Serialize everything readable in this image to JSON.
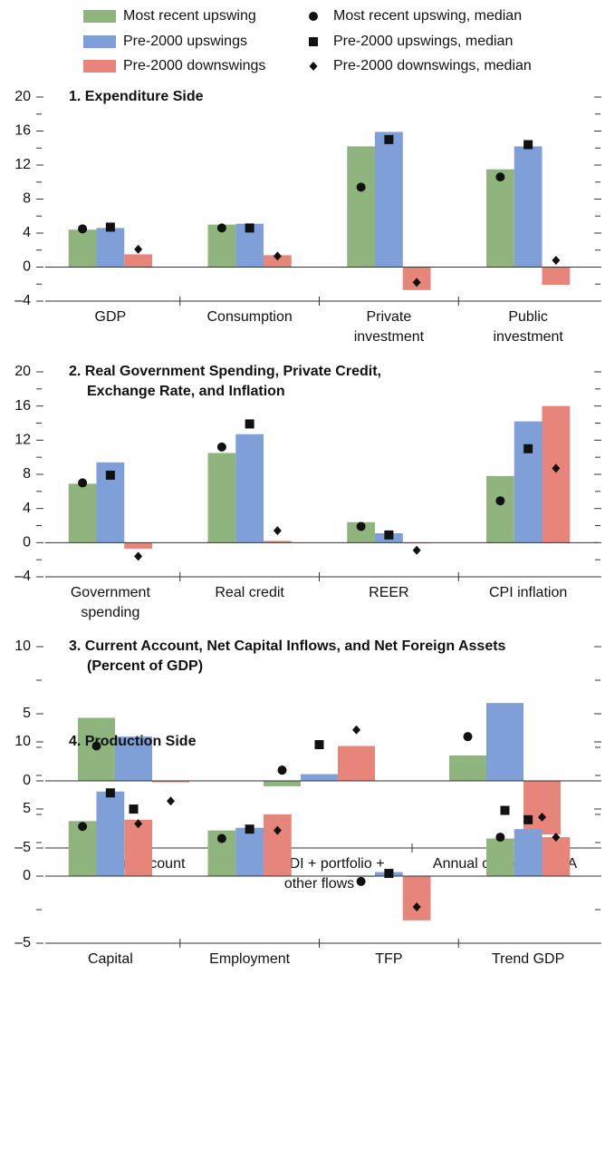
{
  "chart_data": {
    "type": "bar",
    "series": [
      {
        "name": "Most recent upswing",
        "color": "#8fb47e"
      },
      {
        "name": "Pre-2000 upswings",
        "color": "#7e9fd8"
      },
      {
        "name": "Pre-2000 downswings",
        "color": "#e8857a"
      }
    ],
    "medians": [
      {
        "name": "Most recent upswing, median",
        "marker": "circle"
      },
      {
        "name": "Pre-2000 upswings, median",
        "marker": "square"
      },
      {
        "name": "Pre-2000 downswings, median",
        "marker": "diamond"
      }
    ],
    "panels": [
      {
        "title": [
          "1. Expenditure Side"
        ],
        "categories": [
          [
            "GDP"
          ],
          [
            "Consumption"
          ],
          [
            "Private",
            "investment"
          ],
          [
            "Public",
            "investment"
          ]
        ],
        "bars": [
          [
            4.4,
            5.0,
            14.2,
            11.5
          ],
          [
            4.6,
            5.1,
            15.9,
            14.2
          ],
          [
            1.5,
            1.4,
            -2.7,
            -2.1
          ]
        ],
        "median_values": [
          [
            4.5,
            4.6,
            9.4,
            10.6
          ],
          [
            4.7,
            4.6,
            15.0,
            14.4
          ],
          [
            2.1,
            1.3,
            -1.8,
            0.8
          ]
        ],
        "ylim": [
          -4,
          20
        ],
        "yticks": [
          {
            "value": -4,
            "label": "–4"
          },
          0,
          4,
          8,
          12,
          16,
          20
        ],
        "yminorticks": [
          -2,
          2,
          6,
          10,
          14,
          18
        ]
      },
      {
        "title": [
          "2. Real Government Spending, Private Credit,",
          "Exchange Rate, and Inflation"
        ],
        "categories": [
          [
            "Government",
            "spending"
          ],
          [
            "Real credit"
          ],
          [
            "REER"
          ],
          [
            "CPI inflation"
          ]
        ],
        "bars": [
          [
            6.9,
            10.5,
            2.4,
            7.8
          ],
          [
            9.4,
            12.7,
            1.1,
            14.2
          ],
          [
            -0.7,
            0.2,
            0.0,
            16.0
          ]
        ],
        "median_values": [
          [
            7.0,
            11.2,
            1.9,
            4.9
          ],
          [
            7.9,
            13.9,
            0.9,
            11.0
          ],
          [
            -1.6,
            1.4,
            -0.9,
            8.7
          ]
        ],
        "ylim": [
          -4,
          20
        ],
        "yticks": [
          {
            "value": -4,
            "label": "–4"
          },
          0,
          4,
          8,
          12,
          16,
          20
        ],
        "yminorticks": [
          -2,
          2,
          6,
          10,
          14,
          18
        ]
      },
      {
        "title": [
          "3. Current Account, Net Capital Inflows, and Net Foreign Assets",
          "(Percent of GDP)"
        ],
        "categories": [
          [
            "Current account"
          ],
          [
            "Net FDI + portfolio +",
            "other flows"
          ],
          [
            "Annual change in NFA"
          ]
        ],
        "bars": [
          [
            4.7,
            -0.4,
            1.9
          ],
          [
            3.3,
            0.5,
            5.8
          ],
          [
            -0.1,
            2.6,
            -4.0
          ]
        ],
        "median_values": [
          [
            2.6,
            0.8,
            3.3
          ],
          [
            -2.1,
            2.7,
            -2.2
          ],
          [
            -1.5,
            3.8,
            -2.7
          ]
        ],
        "ylim": [
          -5,
          10
        ],
        "yticks": [
          {
            "value": -5,
            "label": "–5"
          },
          0,
          5,
          10
        ],
        "yminorticks": [
          -2.5,
          2.5,
          7.5
        ]
      },
      {
        "title": [
          "4. Production Side"
        ],
        "categories": [
          [
            "Capital"
          ],
          [
            "Employment"
          ],
          [
            "TFP"
          ],
          [
            "Trend GDP"
          ]
        ],
        "bars": [
          [
            4.1,
            3.4,
            0.0,
            2.8
          ],
          [
            6.3,
            3.6,
            0.3,
            3.5
          ],
          [
            4.2,
            4.6,
            -3.3,
            2.9
          ]
        ],
        "median_values": [
          [
            3.7,
            2.8,
            -0.4,
            2.9
          ],
          [
            6.2,
            3.5,
            0.2,
            4.2
          ],
          [
            3.9,
            3.4,
            -2.3,
            2.9
          ]
        ],
        "ylim": [
          -5,
          10
        ],
        "yticks": [
          {
            "value": -5,
            "label": "–5"
          },
          0,
          5,
          10
        ],
        "yminorticks": [
          -2.5,
          2.5,
          7.5
        ]
      }
    ]
  }
}
